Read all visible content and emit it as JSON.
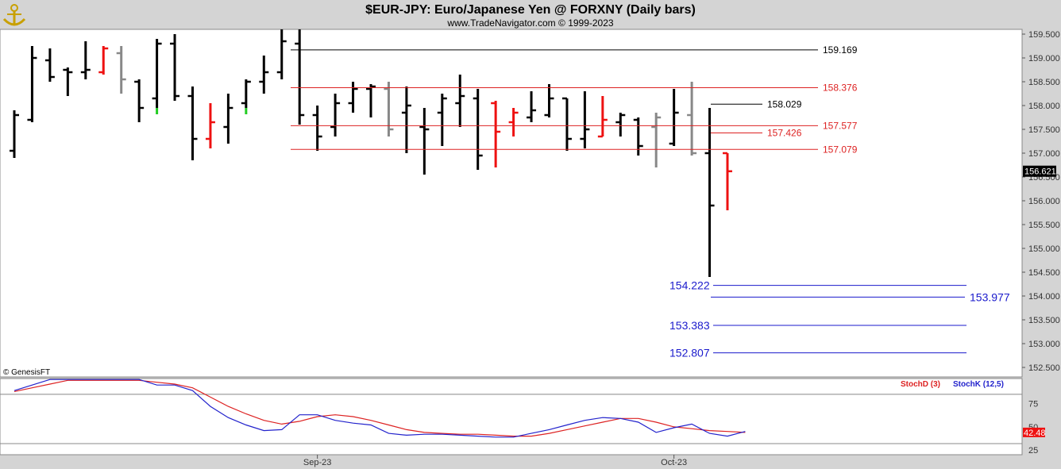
{
  "header": {
    "title": "$EUR-JPY:  Euro/Japanese Yen @ FORXNY  (Daily bars)",
    "subtitle": "www.TradeNavigator.com © 1999-2023",
    "logo_icon": "anchor-logo-icon"
  },
  "copyright": "© GenesisFT",
  "colors": {
    "up": "#000000",
    "down": "#ee1111",
    "neutral": "#888888",
    "green": "#22cc22",
    "red_level": "#dd2222",
    "fib": "#1a1acc",
    "stochD": "#dd2222",
    "stochK": "#2222cc"
  },
  "chart_data": [
    {
      "type": "ohlc",
      "title": "$EUR-JPY:  Euro/Japanese Yen @ FORXNY  (Daily bars)",
      "y_ticks": [
        "159.500",
        "159.000",
        "158.500",
        "158.000",
        "157.500",
        "157.000",
        "156.500",
        "156.000",
        "155.500",
        "155.000",
        "154.500",
        "154.000",
        "153.500",
        "153.000",
        "152.500"
      ],
      "ylim": [
        152.3,
        159.6
      ],
      "x_labels": [
        {
          "label": "Sep-23",
          "bar": 17
        },
        {
          "label": "Oct-23",
          "bar": 37
        }
      ],
      "bars": [
        {
          "o": 157.05,
          "h": 157.9,
          "l": 156.9,
          "c": 157.8,
          "color": "up"
        },
        {
          "o": 157.7,
          "h": 159.25,
          "l": 157.65,
          "c": 159.0,
          "color": "up"
        },
        {
          "o": 158.95,
          "h": 159.2,
          "l": 158.5,
          "c": 158.6,
          "color": "up"
        },
        {
          "o": 158.75,
          "h": 158.8,
          "l": 158.2,
          "c": 158.7,
          "color": "up"
        },
        {
          "o": 158.7,
          "h": 159.35,
          "l": 158.55,
          "c": 158.75,
          "color": "up"
        },
        {
          "o": 158.7,
          "h": 159.25,
          "l": 158.65,
          "c": 159.2,
          "color": "down"
        },
        {
          "o": 159.1,
          "h": 159.25,
          "l": 158.25,
          "c": 158.55,
          "color": "neutral"
        },
        {
          "o": 158.5,
          "h": 158.55,
          "l": 157.65,
          "c": 157.95,
          "color": "up"
        },
        {
          "o": 158.15,
          "h": 159.4,
          "l": 157.95,
          "c": 159.3,
          "color": "up"
        },
        {
          "o": 159.3,
          "h": 159.5,
          "l": 158.1,
          "c": 158.2,
          "color": "up"
        },
        {
          "o": 158.2,
          "h": 158.4,
          "l": 156.85,
          "c": 157.3,
          "color": "up"
        },
        {
          "o": 157.3,
          "h": 158.05,
          "l": 157.1,
          "c": 157.65,
          "color": "down"
        },
        {
          "o": 157.55,
          "h": 158.25,
          "l": 157.2,
          "c": 157.95,
          "color": "up"
        },
        {
          "o": 158.05,
          "h": 158.55,
          "l": 157.95,
          "c": 158.5,
          "color": "up"
        },
        {
          "o": 158.5,
          "h": 159.05,
          "l": 158.25,
          "c": 158.7,
          "color": "up"
        },
        {
          "o": 158.7,
          "h": 159.6,
          "l": 158.55,
          "c": 159.35,
          "color": "up"
        },
        {
          "o": 159.3,
          "h": 159.6,
          "l": 157.6,
          "c": 157.8,
          "color": "up"
        },
        {
          "o": 157.8,
          "h": 158.0,
          "l": 157.05,
          "c": 157.35,
          "color": "up"
        },
        {
          "o": 157.55,
          "h": 158.25,
          "l": 157.35,
          "c": 158.05,
          "color": "up"
        },
        {
          "o": 158.05,
          "h": 158.5,
          "l": 157.85,
          "c": 158.35,
          "color": "up"
        },
        {
          "o": 158.35,
          "h": 158.45,
          "l": 157.75,
          "c": 158.4,
          "color": "up"
        },
        {
          "o": 158.35,
          "h": 158.5,
          "l": 157.35,
          "c": 157.5,
          "color": "neutral"
        },
        {
          "o": 157.85,
          "h": 158.4,
          "l": 157.0,
          "c": 158.0,
          "color": "up"
        },
        {
          "o": 157.55,
          "h": 157.95,
          "l": 156.55,
          "c": 157.5,
          "color": "up"
        },
        {
          "o": 157.85,
          "h": 158.25,
          "l": 157.15,
          "c": 158.15,
          "color": "up"
        },
        {
          "o": 158.05,
          "h": 158.65,
          "l": 157.55,
          "c": 158.2,
          "color": "up"
        },
        {
          "o": 158.15,
          "h": 158.35,
          "l": 156.65,
          "c": 156.95,
          "color": "up"
        },
        {
          "o": 158.05,
          "h": 158.1,
          "l": 156.7,
          "c": 157.45,
          "color": "down"
        },
        {
          "o": 157.65,
          "h": 157.95,
          "l": 157.35,
          "c": 157.85,
          "color": "down"
        },
        {
          "o": 157.75,
          "h": 158.3,
          "l": 157.65,
          "c": 157.9,
          "color": "up"
        },
        {
          "o": 157.8,
          "h": 158.45,
          "l": 157.75,
          "c": 158.15,
          "color": "up"
        },
        {
          "o": 158.15,
          "h": 158.15,
          "l": 157.05,
          "c": 157.3,
          "color": "up"
        },
        {
          "o": 157.3,
          "h": 158.3,
          "l": 157.1,
          "c": 157.5,
          "color": "up"
        },
        {
          "o": 157.35,
          "h": 158.2,
          "l": 157.35,
          "c": 157.7,
          "color": "down"
        },
        {
          "o": 157.65,
          "h": 157.85,
          "l": 157.35,
          "c": 157.8,
          "color": "up"
        },
        {
          "o": 157.7,
          "h": 157.75,
          "l": 156.95,
          "c": 157.15,
          "color": "up"
        },
        {
          "o": 157.55,
          "h": 157.85,
          "l": 156.7,
          "c": 157.75,
          "color": "neutral"
        },
        {
          "o": 157.2,
          "h": 158.35,
          "l": 157.15,
          "c": 157.85,
          "color": "up"
        },
        {
          "o": 157.8,
          "h": 158.5,
          "l": 156.95,
          "c": 157.0,
          "color": "neutral"
        },
        {
          "o": 157.0,
          "h": 157.95,
          "l": 154.4,
          "c": 155.9,
          "color": "up"
        },
        {
          "o": 157.0,
          "h": 157.0,
          "l": 155.8,
          "c": 156.62,
          "color": "down"
        }
      ],
      "green_ticks": [
        8,
        13
      ],
      "levels": [
        {
          "value": 159.169,
          "label": "159.169",
          "color": "#000000",
          "x0": 366,
          "x1": 1030,
          "label_x": 1036
        },
        {
          "value": 158.376,
          "label": "158.376",
          "color": "#dd2222",
          "x0": 366,
          "x1": 1030,
          "label_x": 1036
        },
        {
          "value": 158.029,
          "label": "158.029",
          "color": "#000000",
          "x0": 895,
          "x1": 960,
          "label_x": 966
        },
        {
          "value": 157.577,
          "label": "157.577",
          "color": "#dd2222",
          "x0": 366,
          "x1": 1030,
          "label_x": 1036
        },
        {
          "value": 157.426,
          "label": "157.426",
          "color": "#dd2222",
          "x0": 895,
          "x1": 960,
          "label_x": 966
        },
        {
          "value": 157.079,
          "label": "157.079",
          "color": "#dd2222",
          "x0": 366,
          "x1": 1030,
          "label_x": 1036
        }
      ],
      "fib_levels": [
        {
          "value": 154.222,
          "label": "154.222",
          "x0": 898,
          "x1": 1217,
          "label_x": 843,
          "label_side": "left"
        },
        {
          "value": 153.977,
          "label": "153.977",
          "x0": 895,
          "x1": 1215,
          "label_x": 1221,
          "label_side": "right"
        },
        {
          "value": 153.383,
          "label": "153.383",
          "x0": 898,
          "x1": 1217,
          "label_x": 843,
          "label_side": "left"
        },
        {
          "value": 152.807,
          "label": "152.807",
          "x0": 898,
          "x1": 1217,
          "label_x": 843,
          "label_side": "left"
        }
      ],
      "last_price": "156.621"
    },
    {
      "type": "line",
      "legend": [
        "StochD (3)",
        "StochK (12,5)"
      ],
      "ylim": [
        20,
        102
      ],
      "y_ticks": [
        "75",
        "50",
        "25"
      ],
      "current_label": "42.48",
      "reference_lines": [
        85,
        32
      ],
      "series": [
        {
          "name": "StochD (3)",
          "color": "#dd2222",
          "points": [
            [
              0,
              88
            ],
            [
              1,
              92
            ],
            [
              2,
              96
            ],
            [
              3,
              100
            ],
            [
              7,
              100
            ],
            [
              8,
              98
            ],
            [
              9,
              96
            ],
            [
              10,
              92
            ],
            [
              11,
              82
            ],
            [
              12,
              72
            ],
            [
              13,
              64
            ],
            [
              14,
              57
            ],
            [
              15,
              53
            ],
            [
              16,
              56
            ],
            [
              17,
              61
            ],
            [
              18,
              63
            ],
            [
              19,
              61
            ],
            [
              20,
              57
            ],
            [
              21,
              52
            ],
            [
              22,
              47
            ],
            [
              23,
              44
            ],
            [
              24,
              43
            ],
            [
              25,
              42
            ],
            [
              26,
              42
            ],
            [
              27,
              41
            ],
            [
              28,
              40
            ],
            [
              29,
              40
            ],
            [
              30,
              43
            ],
            [
              31,
              47
            ],
            [
              32,
              51
            ],
            [
              33,
              55
            ],
            [
              34,
              59
            ],
            [
              35,
              59
            ],
            [
              36,
              55
            ],
            [
              37,
              50
            ],
            [
              38,
              48
            ],
            [
              39,
              46
            ],
            [
              40,
              45
            ],
            [
              41,
              44
            ]
          ]
        },
        {
          "name": "StochK (12,5)",
          "color": "#2222cc",
          "points": [
            [
              0,
              89
            ],
            [
              1,
              95
            ],
            [
              2,
              101
            ],
            [
              7,
              101
            ],
            [
              8,
              95
            ],
            [
              9,
              95
            ],
            [
              10,
              89
            ],
            [
              11,
              72
            ],
            [
              12,
              60
            ],
            [
              13,
              52
            ],
            [
              14,
              46
            ],
            [
              15,
              47
            ],
            [
              16,
              63
            ],
            [
              17,
              63
            ],
            [
              18,
              57
            ],
            [
              19,
              54
            ],
            [
              20,
              52
            ],
            [
              21,
              43
            ],
            [
              22,
              41
            ],
            [
              23,
              42
            ],
            [
              24,
              42
            ],
            [
              25,
              41
            ],
            [
              26,
              40
            ],
            [
              27,
              39
            ],
            [
              28,
              39
            ],
            [
              29,
              43
            ],
            [
              30,
              47
            ],
            [
              31,
              52
            ],
            [
              32,
              57
            ],
            [
              33,
              60
            ],
            [
              34,
              59
            ],
            [
              35,
              55
            ],
            [
              36,
              44
            ],
            [
              37,
              49
            ],
            [
              38,
              53
            ],
            [
              39,
              43
            ],
            [
              40,
              40
            ],
            [
              41,
              45
            ]
          ]
        }
      ]
    }
  ]
}
